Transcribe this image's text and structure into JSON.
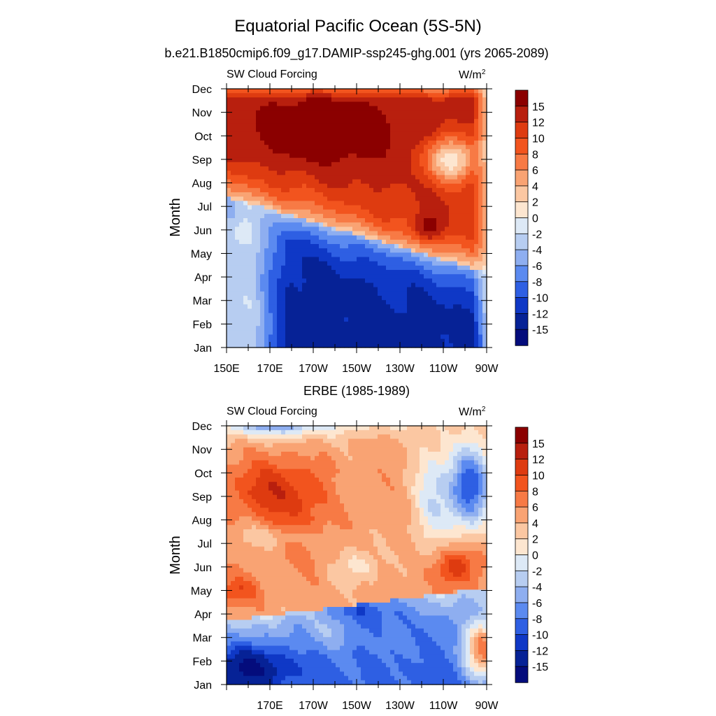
{
  "chart_data": {
    "title": "Equatorial Pacific Ocean (5S-5N)",
    "type": "contour",
    "colorbar": {
      "labels": [
        "15",
        "12",
        "10",
        "8",
        "6",
        "4",
        "2",
        "0",
        "-2",
        "-4",
        "-6",
        "-8",
        "-10",
        "-12",
        "-15"
      ],
      "colors": [
        "#8b0000",
        "#b81f0e",
        "#de3b10",
        "#f2541e",
        "#f77a45",
        "#f9a373",
        "#fbc7a2",
        "#fde6d0",
        "#dde9f6",
        "#b7cdf1",
        "#8eaef0",
        "#5b8af0",
        "#2e5fe3",
        "#0f38c6",
        "#062296",
        "#040c7c"
      ]
    },
    "panels": [
      {
        "subtitle": "b.e21.B1850cmip6.f09_g17.DAMIP-ssp245-ghg.001 (yrs 2065-2089)",
        "left_label": "SW Cloud Forcing",
        "units": "W/m",
        "units_sup": "2",
        "ylabel": "Month",
        "yticks": [
          "Jan",
          "Feb",
          "Mar",
          "Apr",
          "May",
          "Jun",
          "Jul",
          "Aug",
          "Sep",
          "Oct",
          "Nov",
          "Dec"
        ],
        "xticks": [
          "150E",
          "170E",
          "170W",
          "150W",
          "130W",
          "110W",
          "90W"
        ],
        "xlim_deg_east": [
          150,
          270
        ]
      },
      {
        "subtitle": "ERBE (1985-1989)",
        "left_label": "SW Cloud Forcing",
        "units": "W/m",
        "units_sup": "2",
        "ylabel": "Month",
        "yticks": [
          "Jan",
          "Feb",
          "Mar",
          "Apr",
          "May",
          "Jun",
          "Jul",
          "Aug",
          "Sep",
          "Oct",
          "Nov",
          "Dec"
        ],
        "xticks": [
          "170E",
          "170W",
          "150W",
          "130W",
          "110W",
          "90W"
        ],
        "xlim_deg_east": [
          150,
          270
        ]
      }
    ]
  }
}
